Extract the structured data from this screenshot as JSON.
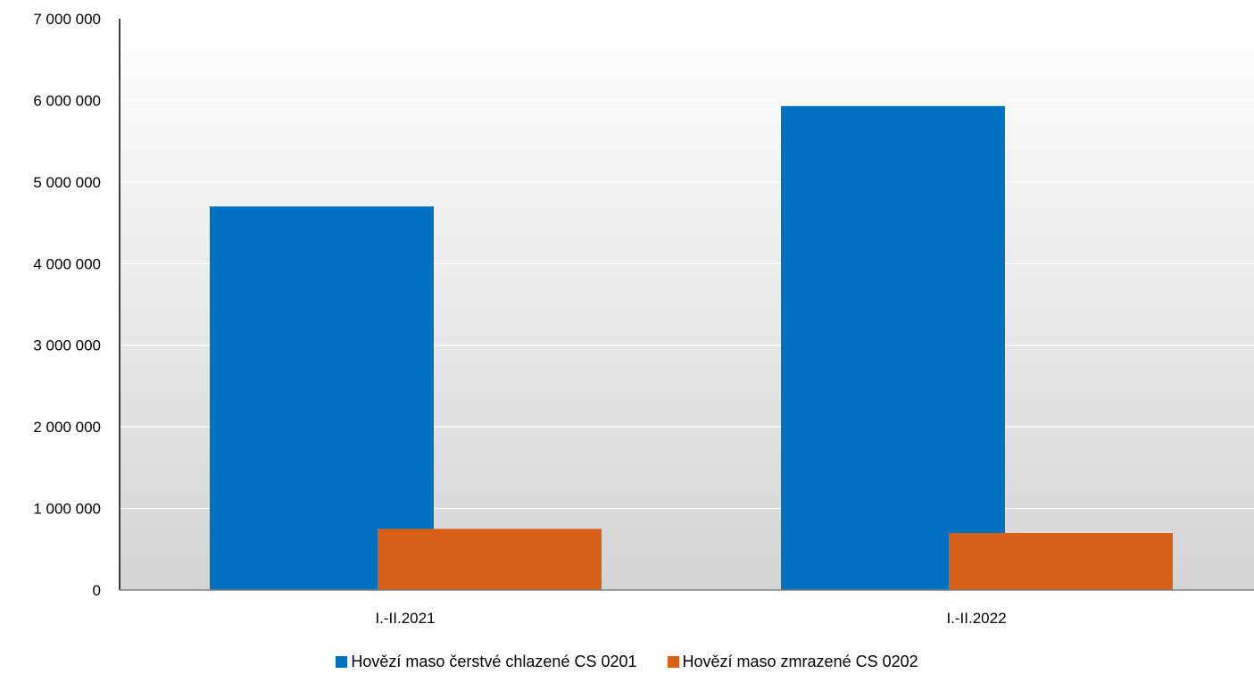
{
  "chart_data": {
    "type": "bar",
    "title": "",
    "xlabel": "",
    "ylabel": "",
    "categories": [
      "I.-II.2021",
      "I.-II.2022"
    ],
    "series": [
      {
        "name": "Hovězí maso čerstvé chlazené CS 0201",
        "color": "#0070C0",
        "values": [
          4700000,
          5930000
        ]
      },
      {
        "name": "Hovězí maso zmrazené CS 0202",
        "color": "#D86019",
        "values": [
          750000,
          700000
        ]
      }
    ],
    "ylim": [
      0,
      7000000
    ],
    "y_ticks": [
      0,
      1000000,
      2000000,
      3000000,
      4000000,
      5000000,
      6000000,
      7000000
    ],
    "y_tick_labels": [
      "0",
      "1 000 000",
      "2 000 000",
      "3 000 000",
      "4 000 000",
      "5 000 000",
      "6 000 000",
      "7 000 000"
    ],
    "grid": true,
    "legend_position": "bottom",
    "plot_background": "gradient white to light gray"
  }
}
